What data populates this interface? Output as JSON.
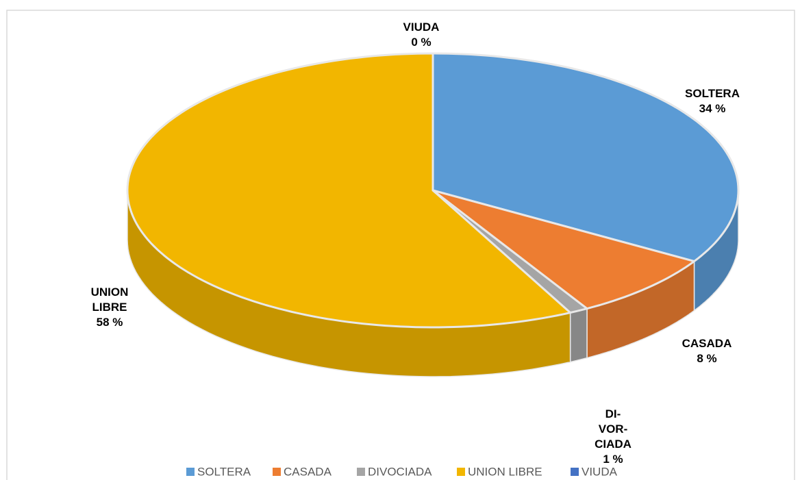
{
  "chart_data": {
    "type": "pie",
    "categories": [
      "SOLTERA",
      "CASADA",
      "DIVOCIADA",
      "UNION LIBRE",
      "VIUDA"
    ],
    "values": [
      34,
      8,
      1,
      58,
      0
    ],
    "value_labels": [
      "34 %",
      "8 %",
      "1 %",
      "58 %",
      "0 %"
    ],
    "data_labels": [
      [
        "SOLTERA"
      ],
      [
        "CASADA"
      ],
      [
        "DI-",
        "VOR-",
        "CIADA"
      ],
      [
        "UNION",
        "LIBRE"
      ],
      [
        "VIUDA"
      ]
    ],
    "colors": [
      "#5b9bd5",
      "#ed7d31",
      "#a5a5a5",
      "#f2b600",
      "#4472c4"
    ],
    "legend": "bottom"
  }
}
